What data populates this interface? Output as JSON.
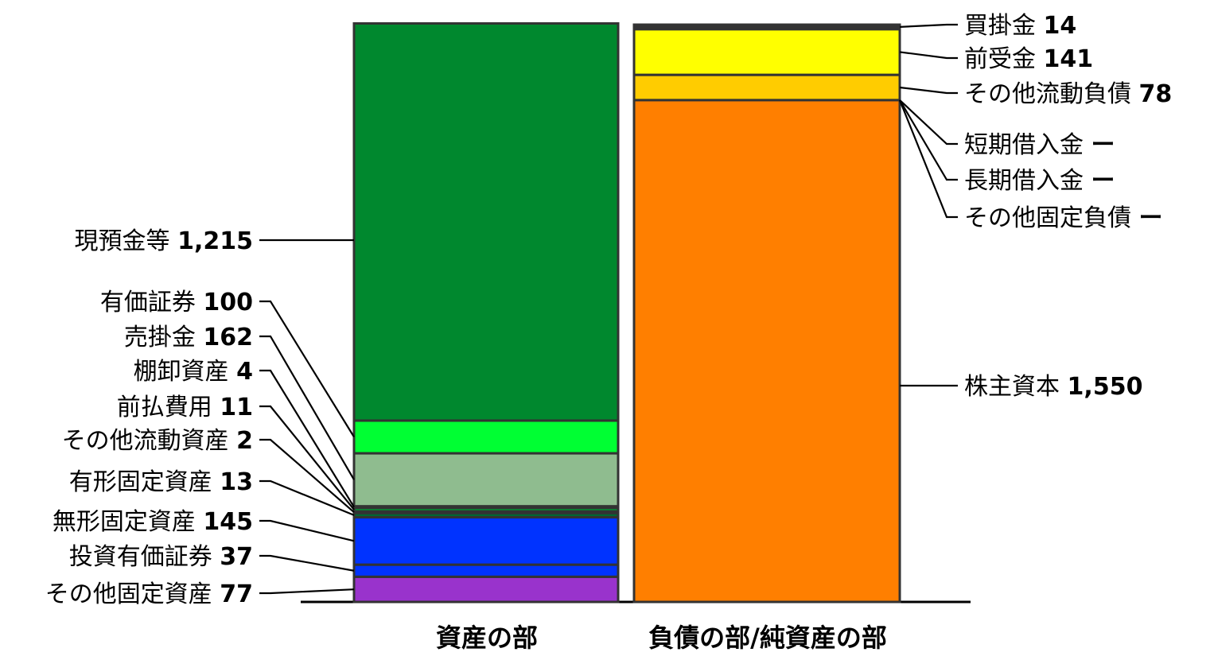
{
  "chart_data": {
    "type": "bar",
    "stacked": true,
    "categories": [
      "資産の部",
      "負債の部/純資産の部"
    ],
    "series": [
      {
        "category": "資産の部",
        "items": [
          {
            "name": "その他固定資産",
            "value": 77,
            "value_label": "77",
            "color": "#9933cc"
          },
          {
            "name": "投資有価証券",
            "value": 37,
            "value_label": "37",
            "color": "#0033ff"
          },
          {
            "name": "無形固定資産",
            "value": 145,
            "value_label": "145",
            "color": "#0033ff"
          },
          {
            "name": "有形固定資産",
            "value": 13,
            "value_label": "13",
            "color": "#006633"
          },
          {
            "name": "その他流動資産",
            "value": 2,
            "value_label": "2",
            "color": "#006633"
          },
          {
            "name": "前払費用",
            "value": 11,
            "value_label": "11",
            "color": "#009933"
          },
          {
            "name": "棚卸資産",
            "value": 4,
            "value_label": "4",
            "color": "#006633"
          },
          {
            "name": "売掛金",
            "value": 162,
            "value_label": "162",
            "color": "#8fbc8f"
          },
          {
            "name": "有価証券",
            "value": 100,
            "value_label": "100",
            "color": "#00ff33"
          },
          {
            "name": "現預金等",
            "value": 1215,
            "value_label": "1,215",
            "color": "#00882e"
          }
        ]
      },
      {
        "category": "負債の部/純資産の部",
        "items": [
          {
            "name": "株主資本",
            "value": 1550,
            "value_label": "1,550",
            "color": "#ff7f00"
          },
          {
            "name": "その他固定負債",
            "value": 0,
            "value_label": "ー",
            "color": "#ff7f00"
          },
          {
            "name": "長期借入金",
            "value": 0,
            "value_label": "ー",
            "color": "#ff7f00"
          },
          {
            "name": "短期借入金",
            "value": 0,
            "value_label": "ー",
            "color": "#ff7f00"
          },
          {
            "name": "その他流動負債",
            "value": 78,
            "value_label": "78",
            "color": "#ffcc00"
          },
          {
            "name": "前受金",
            "value": 141,
            "value_label": "141",
            "color": "#ffff00"
          },
          {
            "name": "買掛金",
            "value": 14,
            "value_label": "14",
            "color": "#333333"
          }
        ]
      }
    ],
    "title": "",
    "xlabel": "",
    "ylabel": "",
    "grid": false,
    "legend": "none"
  }
}
